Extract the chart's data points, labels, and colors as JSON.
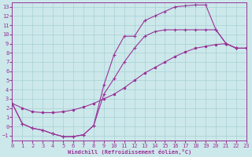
{
  "xlabel": "Windchill (Refroidissement éolien,°C)",
  "bg_color": "#cce8ea",
  "grid_color": "#a8d0d4",
  "line_color": "#993399",
  "xlim": [
    0,
    23
  ],
  "ylim": [
    -1.5,
    13.5
  ],
  "xticks": [
    0,
    1,
    2,
    3,
    4,
    5,
    6,
    7,
    8,
    9,
    10,
    11,
    12,
    13,
    14,
    15,
    16,
    17,
    18,
    19,
    20,
    21,
    22,
    23
  ],
  "yticks": [
    -1,
    0,
    1,
    2,
    3,
    4,
    5,
    6,
    7,
    8,
    9,
    10,
    11,
    12,
    13
  ],
  "c1_x": [
    0,
    1,
    2,
    3,
    4,
    5,
    6,
    7,
    8,
    9,
    10,
    11,
    12,
    13,
    14,
    15,
    16,
    17,
    18,
    19,
    20,
    21,
    22,
    23
  ],
  "c1_y": [
    2.5,
    0.3,
    -0.2,
    -0.4,
    -0.8,
    -1.1,
    -1.1,
    -0.9,
    0.1,
    4.5,
    7.8,
    9.8,
    9.8,
    11.5,
    12.0,
    12.5,
    13.0,
    13.1,
    13.2,
    13.2,
    10.5,
    9.0,
    8.5,
    8.5
  ],
  "c2_x": [
    0,
    1,
    2,
    3,
    4,
    5,
    6,
    7,
    8,
    9,
    10,
    11,
    12,
    13,
    14,
    15,
    16,
    17,
    18,
    19,
    20,
    21,
    22,
    23
  ],
  "c2_y": [
    2.5,
    0.3,
    -0.2,
    -0.4,
    -0.8,
    -1.1,
    -1.1,
    -0.9,
    0.1,
    3.5,
    5.2,
    7.0,
    8.5,
    9.8,
    10.3,
    10.5,
    10.5,
    10.5,
    10.5,
    10.5,
    10.5,
    9.0,
    8.5,
    8.5
  ],
  "c3_x": [
    0,
    1,
    2,
    3,
    4,
    5,
    6,
    7,
    8,
    9,
    10,
    11,
    12,
    13,
    14,
    15,
    16,
    17,
    18,
    19,
    20,
    21,
    22,
    23
  ],
  "c3_y": [
    2.5,
    2.0,
    1.6,
    1.5,
    1.5,
    1.6,
    1.8,
    2.1,
    2.5,
    3.0,
    3.5,
    4.2,
    5.0,
    5.8,
    6.4,
    7.0,
    7.6,
    8.1,
    8.5,
    8.7,
    8.9,
    9.0,
    8.5,
    8.5
  ]
}
